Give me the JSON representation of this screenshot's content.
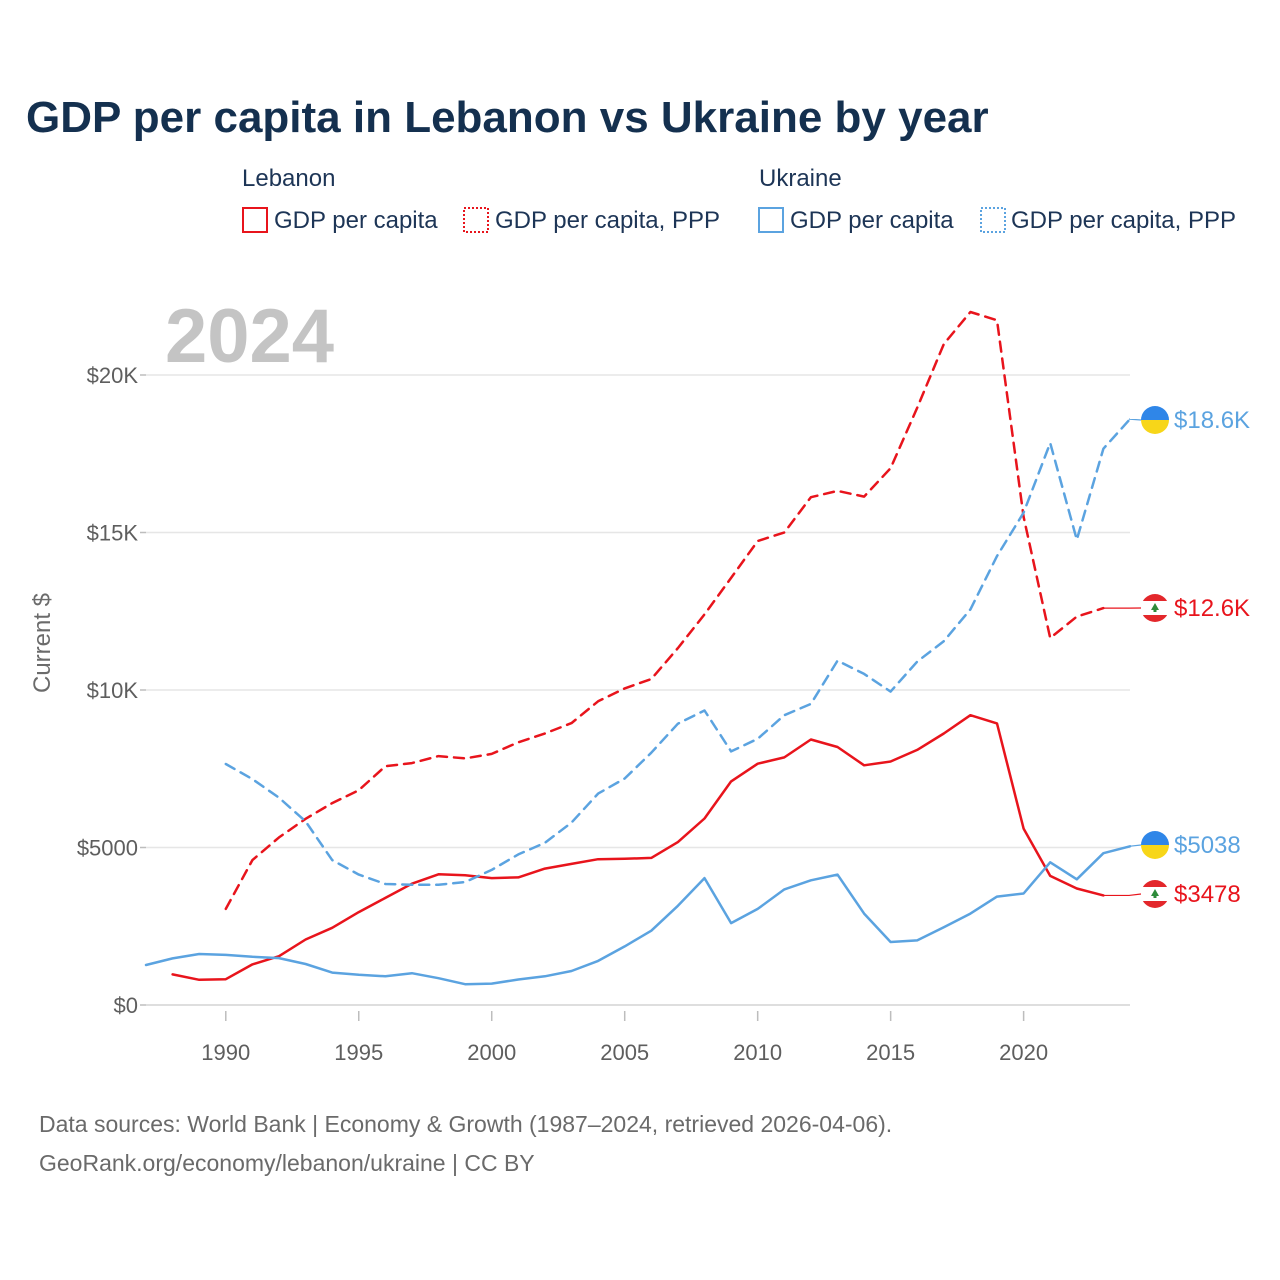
{
  "chart_data": {
    "type": "line",
    "title": "GDP per capita in Lebanon vs Ukraine by year",
    "ylabel": "Current $",
    "xlabel": "",
    "year_label": "2024",
    "xlim": [
      1987,
      2024
    ],
    "ylim": [
      0,
      22000
    ],
    "x_ticks": [
      1990,
      1995,
      2000,
      2005,
      2010,
      2015,
      2020
    ],
    "y_ticks": [
      {
        "value": 0,
        "label": "$0"
      },
      {
        "value": 5000,
        "label": "$5000"
      },
      {
        "value": 10000,
        "label": "$10K"
      },
      {
        "value": 15000,
        "label": "$15K"
      },
      {
        "value": 20000,
        "label": "$20K"
      }
    ],
    "legend": {
      "groups": [
        {
          "name": "Lebanon",
          "color": "#e8141c",
          "items": [
            {
              "label": "GDP per capita",
              "style": "solid"
            },
            {
              "label": "GDP per capita, PPP",
              "style": "dotted"
            }
          ]
        },
        {
          "name": "Ukraine",
          "color": "#5ba3e0",
          "items": [
            {
              "label": "GDP per capita",
              "style": "solid"
            },
            {
              "label": "GDP per capita, PPP",
              "style": "dotted"
            }
          ]
        }
      ]
    },
    "series": [
      {
        "name": "Lebanon GDP per capita",
        "country": "lebanon",
        "color": "#e8141c",
        "dash": false,
        "x": [
          1988,
          1989,
          1990,
          1991,
          1992,
          1993,
          1994,
          1995,
          1996,
          1997,
          1998,
          1999,
          2000,
          2001,
          2002,
          2003,
          2004,
          2005,
          2006,
          2007,
          2008,
          2009,
          2010,
          2011,
          2012,
          2013,
          2014,
          2015,
          2016,
          2017,
          2018,
          2019,
          2020,
          2021,
          2022,
          2023
        ],
        "values": [
          970,
          800,
          820,
          1290,
          1550,
          2080,
          2450,
          2950,
          3400,
          3850,
          4150,
          4120,
          4030,
          4050,
          4330,
          4480,
          4630,
          4640,
          4670,
          5170,
          5920,
          7100,
          7660,
          7860,
          8430,
          8190,
          7610,
          7730,
          8100,
          8620,
          9200,
          8940,
          5600,
          4100,
          3700,
          3478
        ],
        "end_label": "$3478"
      },
      {
        "name": "Lebanon GDP per capita, PPP",
        "country": "lebanon",
        "color": "#e8141c",
        "dash": true,
        "x": [
          1990,
          1991,
          1992,
          1993,
          1994,
          1995,
          1996,
          1997,
          1998,
          1999,
          2000,
          2001,
          2002,
          2003,
          2004,
          2005,
          2006,
          2007,
          2008,
          2009,
          2010,
          2011,
          2012,
          2013,
          2014,
          2015,
          2016,
          2017,
          2018,
          2019,
          2020,
          2021,
          2022,
          2023
        ],
        "values": [
          3050,
          4600,
          5320,
          5910,
          6410,
          6820,
          7580,
          7680,
          7900,
          7830,
          7970,
          8340,
          8620,
          8950,
          9640,
          10050,
          10350,
          11330,
          12400,
          13560,
          14730,
          15000,
          16120,
          16320,
          16140,
          17040,
          18960,
          20980,
          22000,
          21740,
          15500,
          11650,
          12330,
          12600
        ],
        "end_label": "$12.6K"
      },
      {
        "name": "Ukraine GDP per capita",
        "country": "ukraine",
        "color": "#5ba3e0",
        "dash": false,
        "x": [
          1987,
          1988,
          1989,
          1990,
          1991,
          1992,
          1993,
          1994,
          1995,
          1996,
          1997,
          1998,
          1999,
          2000,
          2001,
          2002,
          2003,
          2004,
          2005,
          2006,
          2007,
          2008,
          2009,
          2010,
          2011,
          2012,
          2013,
          2014,
          2015,
          2016,
          2017,
          2018,
          2019,
          2020,
          2021,
          2022,
          2023,
          2024
        ],
        "values": [
          1270,
          1480,
          1620,
          1590,
          1530,
          1490,
          1300,
          1030,
          960,
          910,
          1010,
          850,
          660,
          680,
          810,
          910,
          1080,
          1400,
          1860,
          2360,
          3150,
          4030,
          2600,
          3050,
          3670,
          3960,
          4140,
          2900,
          2000,
          2050,
          2470,
          2900,
          3440,
          3540,
          4530,
          3990,
          4820,
          5038
        ],
        "end_label": "$5038"
      },
      {
        "name": "Ukraine GDP per capita, PPP",
        "country": "ukraine",
        "color": "#5ba3e0",
        "dash": true,
        "x": [
          1990,
          1991,
          1992,
          1993,
          1994,
          1995,
          1996,
          1997,
          1998,
          1999,
          2000,
          2001,
          2002,
          2003,
          2004,
          2005,
          2006,
          2007,
          2008,
          2009,
          2010,
          2011,
          2012,
          2013,
          2014,
          2015,
          2016,
          2017,
          2018,
          2019,
          2020,
          2021,
          2022,
          2023,
          2024
        ],
        "values": [
          7650,
          7170,
          6580,
          5830,
          4600,
          4140,
          3840,
          3820,
          3820,
          3900,
          4290,
          4780,
          5150,
          5790,
          6710,
          7190,
          8010,
          8930,
          9350,
          8050,
          8450,
          9200,
          9560,
          10930,
          10510,
          9950,
          10900,
          11550,
          12560,
          14250,
          15630,
          17840,
          14770,
          17660,
          18600
        ],
        "end_label": "$18.6K"
      }
    ]
  },
  "footer": {
    "line1": "Data sources: World Bank | Economy & Growth (1987–2024, retrieved 2026-04-06).",
    "line2": "GeoRank.org/economy/lebanon/ukraine | CC BY"
  }
}
